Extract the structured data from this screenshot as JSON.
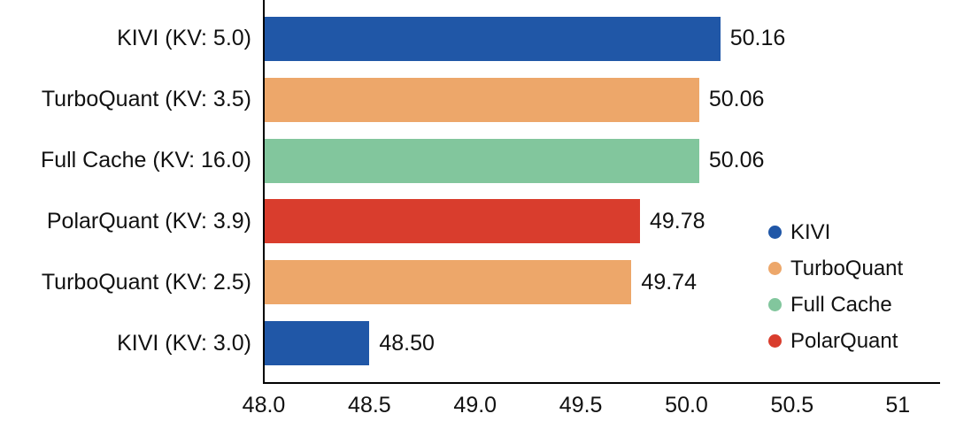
{
  "chart_data": {
    "type": "bar",
    "orientation": "horizontal",
    "title": "",
    "xlabel": "",
    "ylabel": "",
    "grid": false,
    "categories": [
      "KIVI (KV: 5.0)",
      "TurboQuant (KV: 3.5)",
      "Full Cache (KV: 16.0)",
      "PolarQuant (KV: 3.9)",
      "TurboQuant (KV: 2.5)",
      "KIVI (KV: 3.0)"
    ],
    "values": [
      50.16,
      50.06,
      50.06,
      49.78,
      49.74,
      48.5
    ],
    "value_labels": [
      "50.16",
      "50.06",
      "50.06",
      "49.78",
      "49.74",
      "48.50"
    ],
    "bar_series": [
      "KIVI",
      "TurboQuant",
      "Full Cache",
      "PolarQuant",
      "TurboQuant",
      "KIVI"
    ],
    "xlim": [
      48.0,
      51.2
    ],
    "x_ticks": [
      48.0,
      48.5,
      49.0,
      49.5,
      50.0,
      50.5,
      51.0
    ],
    "x_tick_labels": [
      "48.0",
      "48.5",
      "49.0",
      "49.5",
      "50.0",
      "50.5",
      "51"
    ],
    "colors": {
      "KIVI": "#2057a7",
      "TurboQuant": "#eda76a",
      "Full Cache": "#82c69d",
      "PolarQuant": "#d93d2d"
    },
    "text_color": "#111111",
    "legend": {
      "position": "right-middle",
      "entries": [
        {
          "label": "KIVI",
          "color": "#2057a7"
        },
        {
          "label": "TurboQuant",
          "color": "#eda76a"
        },
        {
          "label": "Full Cache",
          "color": "#82c69d"
        },
        {
          "label": "PolarQuant",
          "color": "#d93d2d"
        }
      ]
    }
  }
}
